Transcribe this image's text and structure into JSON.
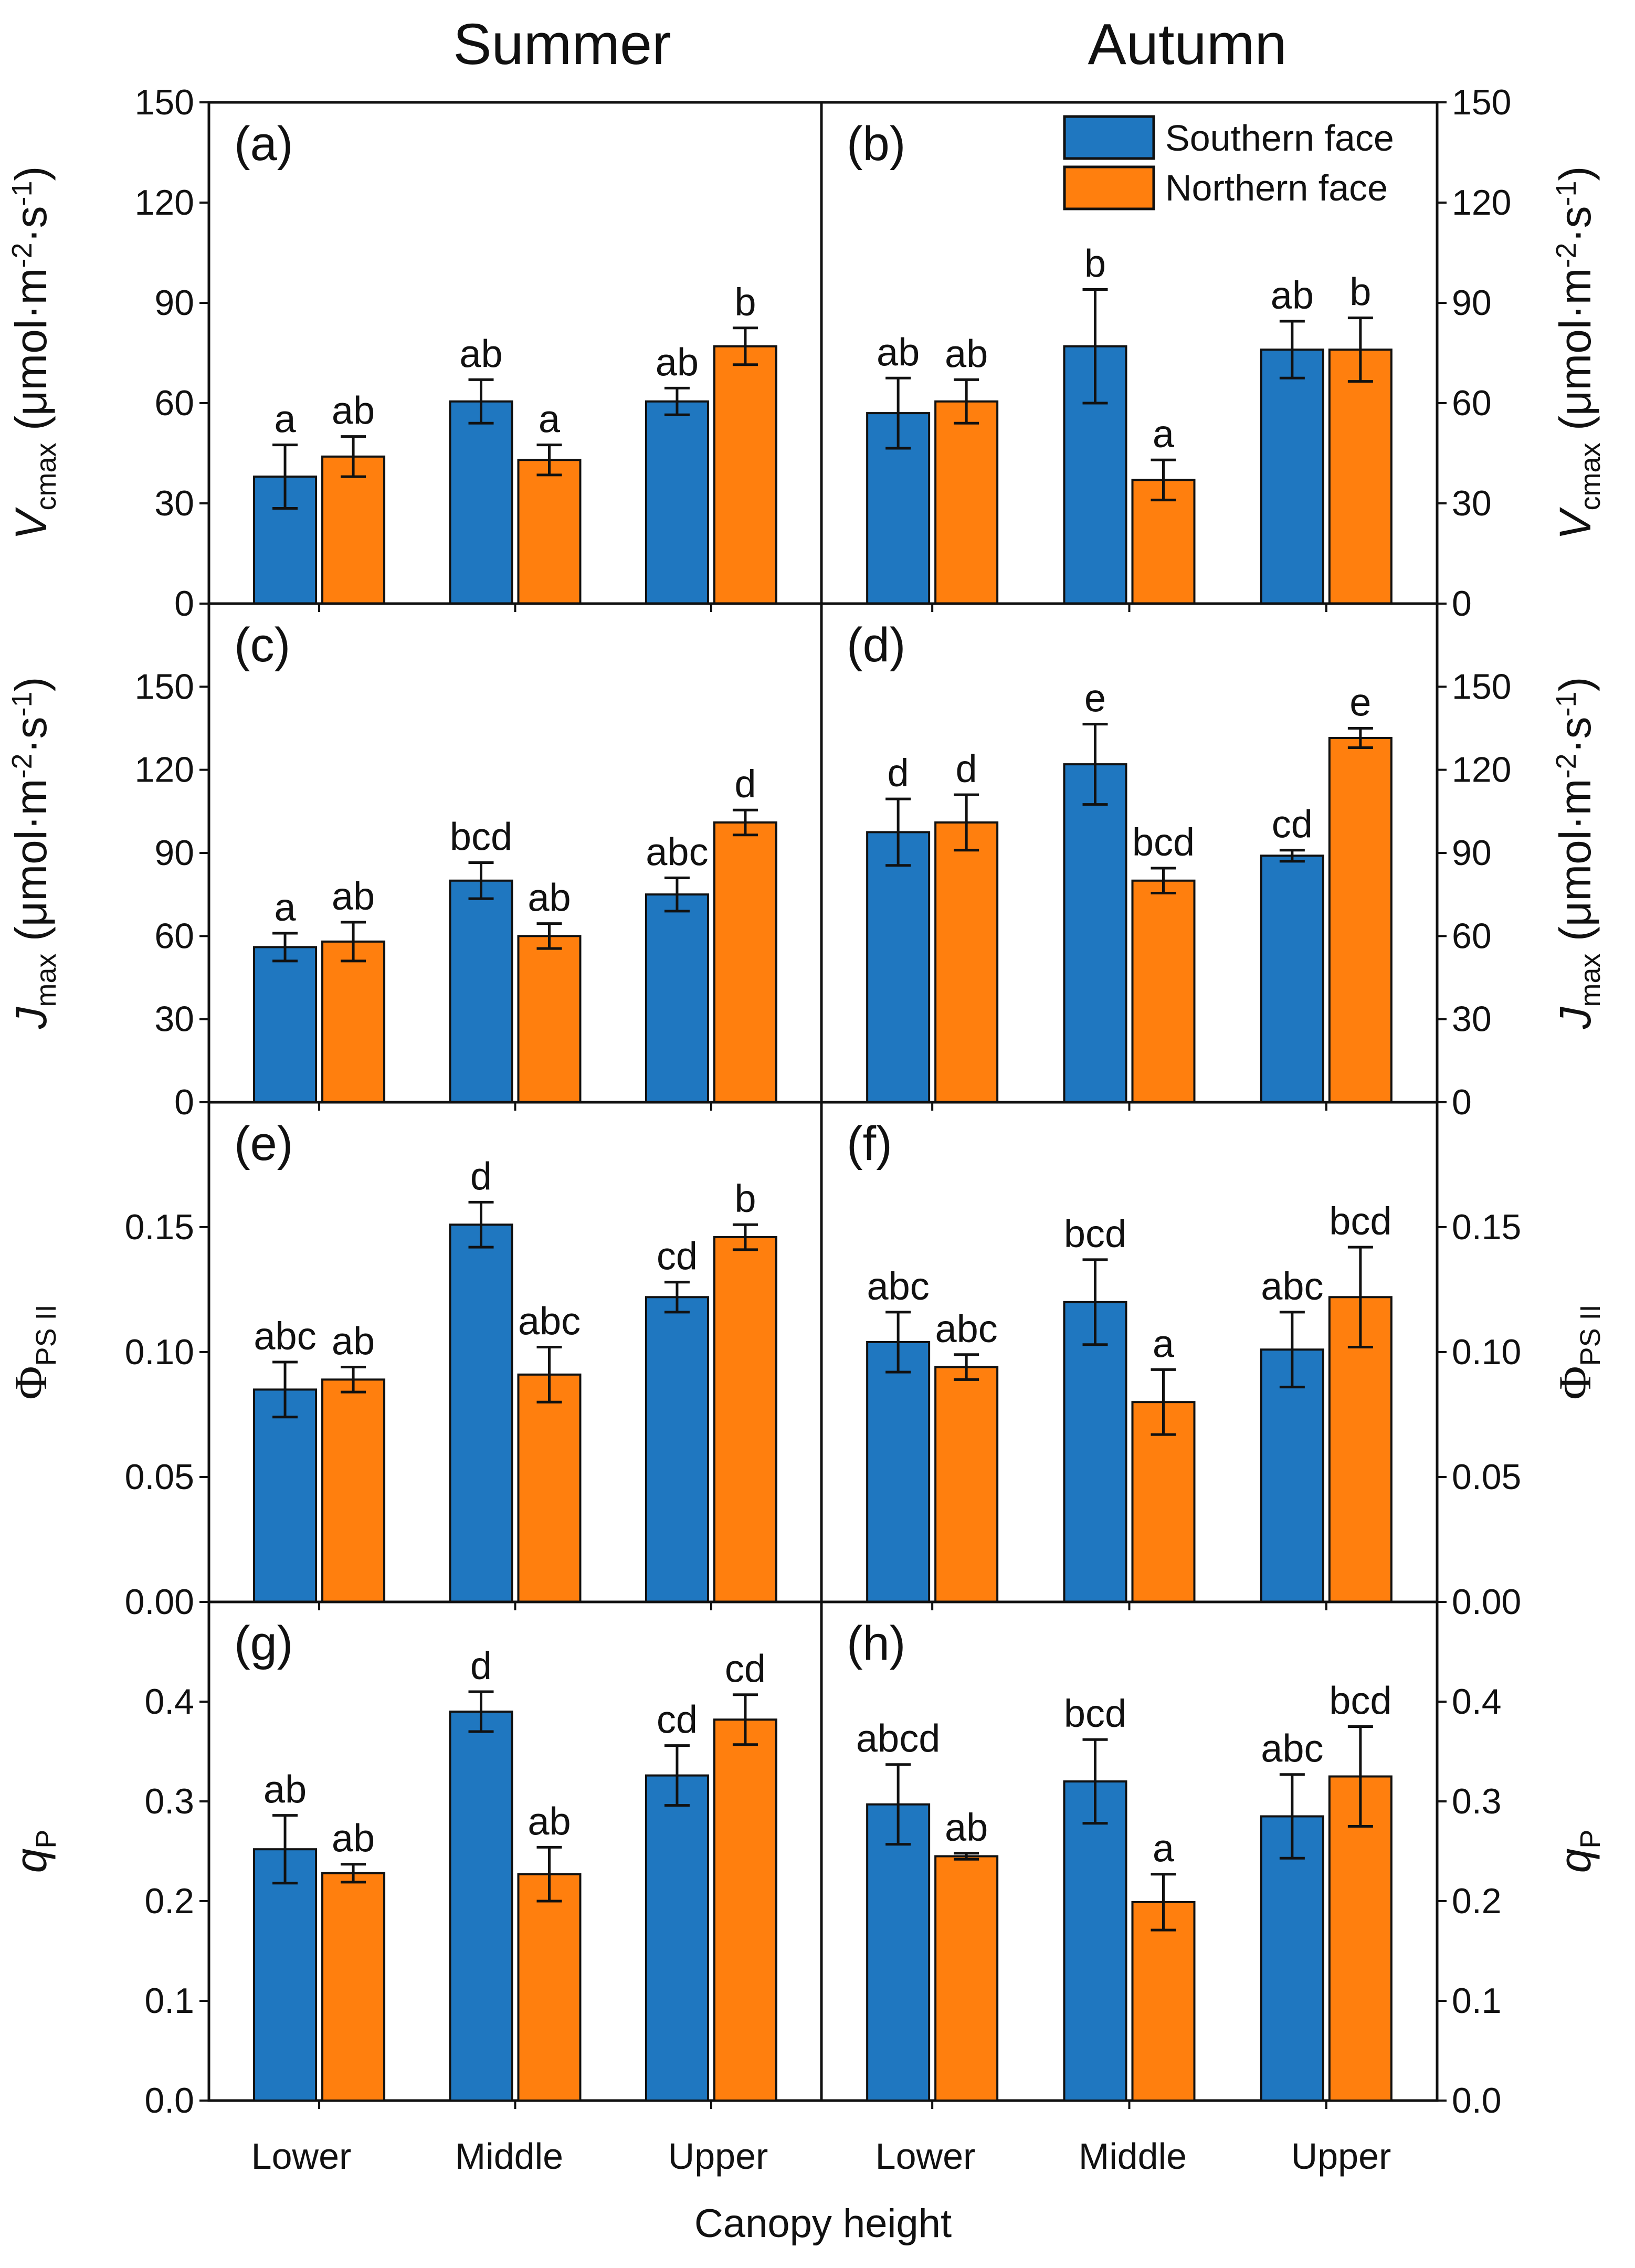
{
  "figure": {
    "col_titles": [
      "Summer",
      "Autumn"
    ],
    "xlabel": "Canopy height",
    "categories": [
      "Lower",
      "Middle",
      "Upper"
    ],
    "legend": [
      {
        "label": "Southern face",
        "color": "#1f77c0"
      },
      {
        "label": "Northern face",
        "color": "#ff7f0e"
      }
    ],
    "ylabels": [
      {
        "sym": "V",
        "sub": "cmax",
        "unit": " (μmol·m",
        "e1": "-2",
        "mid": "·s",
        "e2": "-1",
        "end": ")"
      },
      {
        "sym": "J",
        "sub": "max",
        "unit": " (μmol·m",
        "e1": "-2",
        "mid": "·s",
        "e2": "-1",
        "end": ")"
      },
      {
        "sym": "Φ",
        "sub": "PS II",
        "unit": "",
        "e1": "",
        "mid": "",
        "e2": "",
        "end": ""
      },
      {
        "sym": "q",
        "sub": "P",
        "unit": "",
        "e1": "",
        "mid": "",
        "e2": "",
        "end": ""
      }
    ]
  },
  "chart_data": [
    {
      "type": "bar",
      "panel": "(a)",
      "season": "Summer",
      "categories": [
        "Lower",
        "Middle",
        "Upper"
      ],
      "ylim": [
        0,
        150
      ],
      "yticks": [
        "0",
        "30",
        "60",
        "90",
        "120",
        "150"
      ],
      "series": [
        {
          "name": "Southern face",
          "values": [
            38,
            60.5,
            60.5
          ],
          "errors": [
            9.5,
            6.5,
            4
          ],
          "letters": [
            "a",
            "ab",
            "ab"
          ]
        },
        {
          "name": "Northern face",
          "values": [
            44,
            43,
            77
          ],
          "errors": [
            6,
            4.5,
            5.5
          ],
          "letters": [
            "ab",
            "a",
            "b"
          ]
        }
      ]
    },
    {
      "type": "bar",
      "panel": "(b)",
      "season": "Autumn",
      "categories": [
        "Lower",
        "Middle",
        "Upper"
      ],
      "ylim": [
        0,
        150
      ],
      "yticks": [
        "0",
        "30",
        "60",
        "90",
        "120",
        "150"
      ],
      "series": [
        {
          "name": "Southern face",
          "values": [
            57,
            77,
            76
          ],
          "errors": [
            10.5,
            17,
            8.5
          ],
          "letters": [
            "ab",
            "b",
            "ab"
          ]
        },
        {
          "name": "Northern face",
          "values": [
            60.5,
            37,
            76
          ],
          "errors": [
            6.5,
            6,
            9.5
          ],
          "letters": [
            "ab",
            "a",
            "b"
          ]
        }
      ]
    },
    {
      "type": "bar",
      "panel": "(c)",
      "season": "Summer",
      "categories": [
        "Lower",
        "Middle",
        "Upper"
      ],
      "ylim": [
        0,
        180
      ],
      "yticks": [
        "0",
        "30",
        "60",
        "90",
        "120",
        "150"
      ],
      "series": [
        {
          "name": "Southern face",
          "values": [
            56,
            80,
            75
          ],
          "errors": [
            5,
            6.5,
            6
          ],
          "letters": [
            "a",
            "bcd",
            "abc"
          ]
        },
        {
          "name": "Northern face",
          "values": [
            58,
            60,
            101
          ],
          "errors": [
            7,
            4.5,
            4.5
          ],
          "letters": [
            "ab",
            "ab",
            "d"
          ]
        }
      ]
    },
    {
      "type": "bar",
      "panel": "(d)",
      "season": "Autumn",
      "categories": [
        "Lower",
        "Middle",
        "Upper"
      ],
      "ylim": [
        0,
        180
      ],
      "yticks": [
        "0",
        "30",
        "60",
        "90",
        "120",
        "150"
      ],
      "series": [
        {
          "name": "Southern face",
          "values": [
            97.5,
            122,
            89
          ],
          "errors": [
            12,
            14.5,
            2
          ],
          "letters": [
            "d",
            "e",
            "cd"
          ]
        },
        {
          "name": "Northern face",
          "values": [
            101,
            80,
            131.5
          ],
          "errors": [
            10,
            4.5,
            3.5
          ],
          "letters": [
            "d",
            "bcd",
            "e"
          ]
        }
      ]
    },
    {
      "type": "bar",
      "panel": "(e)",
      "season": "Summer",
      "categories": [
        "Lower",
        "Middle",
        "Upper"
      ],
      "ylim": [
        0,
        0.2
      ],
      "yticks": [
        "0.00",
        "0.05",
        "0.10",
        "0.15"
      ],
      "series": [
        {
          "name": "Southern face",
          "values": [
            0.085,
            0.151,
            0.122
          ],
          "errors": [
            0.011,
            0.009,
            0.006
          ],
          "letters": [
            "abc",
            "d",
            "cd"
          ]
        },
        {
          "name": "Northern face",
          "values": [
            0.089,
            0.091,
            0.146
          ],
          "errors": [
            0.005,
            0.011,
            0.005
          ],
          "letters": [
            "ab",
            "abc",
            "b"
          ]
        }
      ]
    },
    {
      "type": "bar",
      "panel": "(f)",
      "season": "Autumn",
      "categories": [
        "Lower",
        "Middle",
        "Upper"
      ],
      "ylim": [
        0,
        0.2
      ],
      "yticks": [
        "0.00",
        "0.05",
        "0.10",
        "0.15"
      ],
      "series": [
        {
          "name": "Southern face",
          "values": [
            0.104,
            0.12,
            0.101
          ],
          "errors": [
            0.012,
            0.017,
            0.015
          ],
          "letters": [
            "abc",
            "bcd",
            "abc"
          ]
        },
        {
          "name": "Northern face",
          "values": [
            0.094,
            0.08,
            0.122
          ],
          "errors": [
            0.005,
            0.013,
            0.02
          ],
          "letters": [
            "abc",
            "a",
            "bcd"
          ]
        }
      ]
    },
    {
      "type": "bar",
      "panel": "(g)",
      "season": "Summer",
      "categories": [
        "Lower",
        "Middle",
        "Upper"
      ],
      "ylim": [
        0,
        0.5
      ],
      "yticks": [
        "0.0",
        "0.1",
        "0.2",
        "0.3",
        "0.4"
      ],
      "series": [
        {
          "name": "Southern face",
          "values": [
            0.252,
            0.39,
            0.326
          ],
          "errors": [
            0.034,
            0.02,
            0.03
          ],
          "letters": [
            "ab",
            "d",
            "cd"
          ]
        },
        {
          "name": "Northern face",
          "values": [
            0.228,
            0.227,
            0.382
          ],
          "errors": [
            0.009,
            0.027,
            0.025
          ],
          "letters": [
            "ab",
            "ab",
            "cd"
          ]
        }
      ]
    },
    {
      "type": "bar",
      "panel": "(h)",
      "season": "Autumn",
      "categories": [
        "Lower",
        "Middle",
        "Upper"
      ],
      "ylim": [
        0,
        0.5
      ],
      "yticks": [
        "0.0",
        "0.1",
        "0.2",
        "0.3",
        "0.4"
      ],
      "series": [
        {
          "name": "Southern face",
          "values": [
            0.297,
            0.32,
            0.285
          ],
          "errors": [
            0.04,
            0.042,
            0.042
          ],
          "letters": [
            "abcd",
            "bcd",
            "abc"
          ]
        },
        {
          "name": "Northern face",
          "values": [
            0.245,
            0.199,
            0.325
          ],
          "errors": [
            0.003,
            0.028,
            0.05
          ],
          "letters": [
            "ab",
            "a",
            "bcd"
          ]
        }
      ]
    }
  ]
}
